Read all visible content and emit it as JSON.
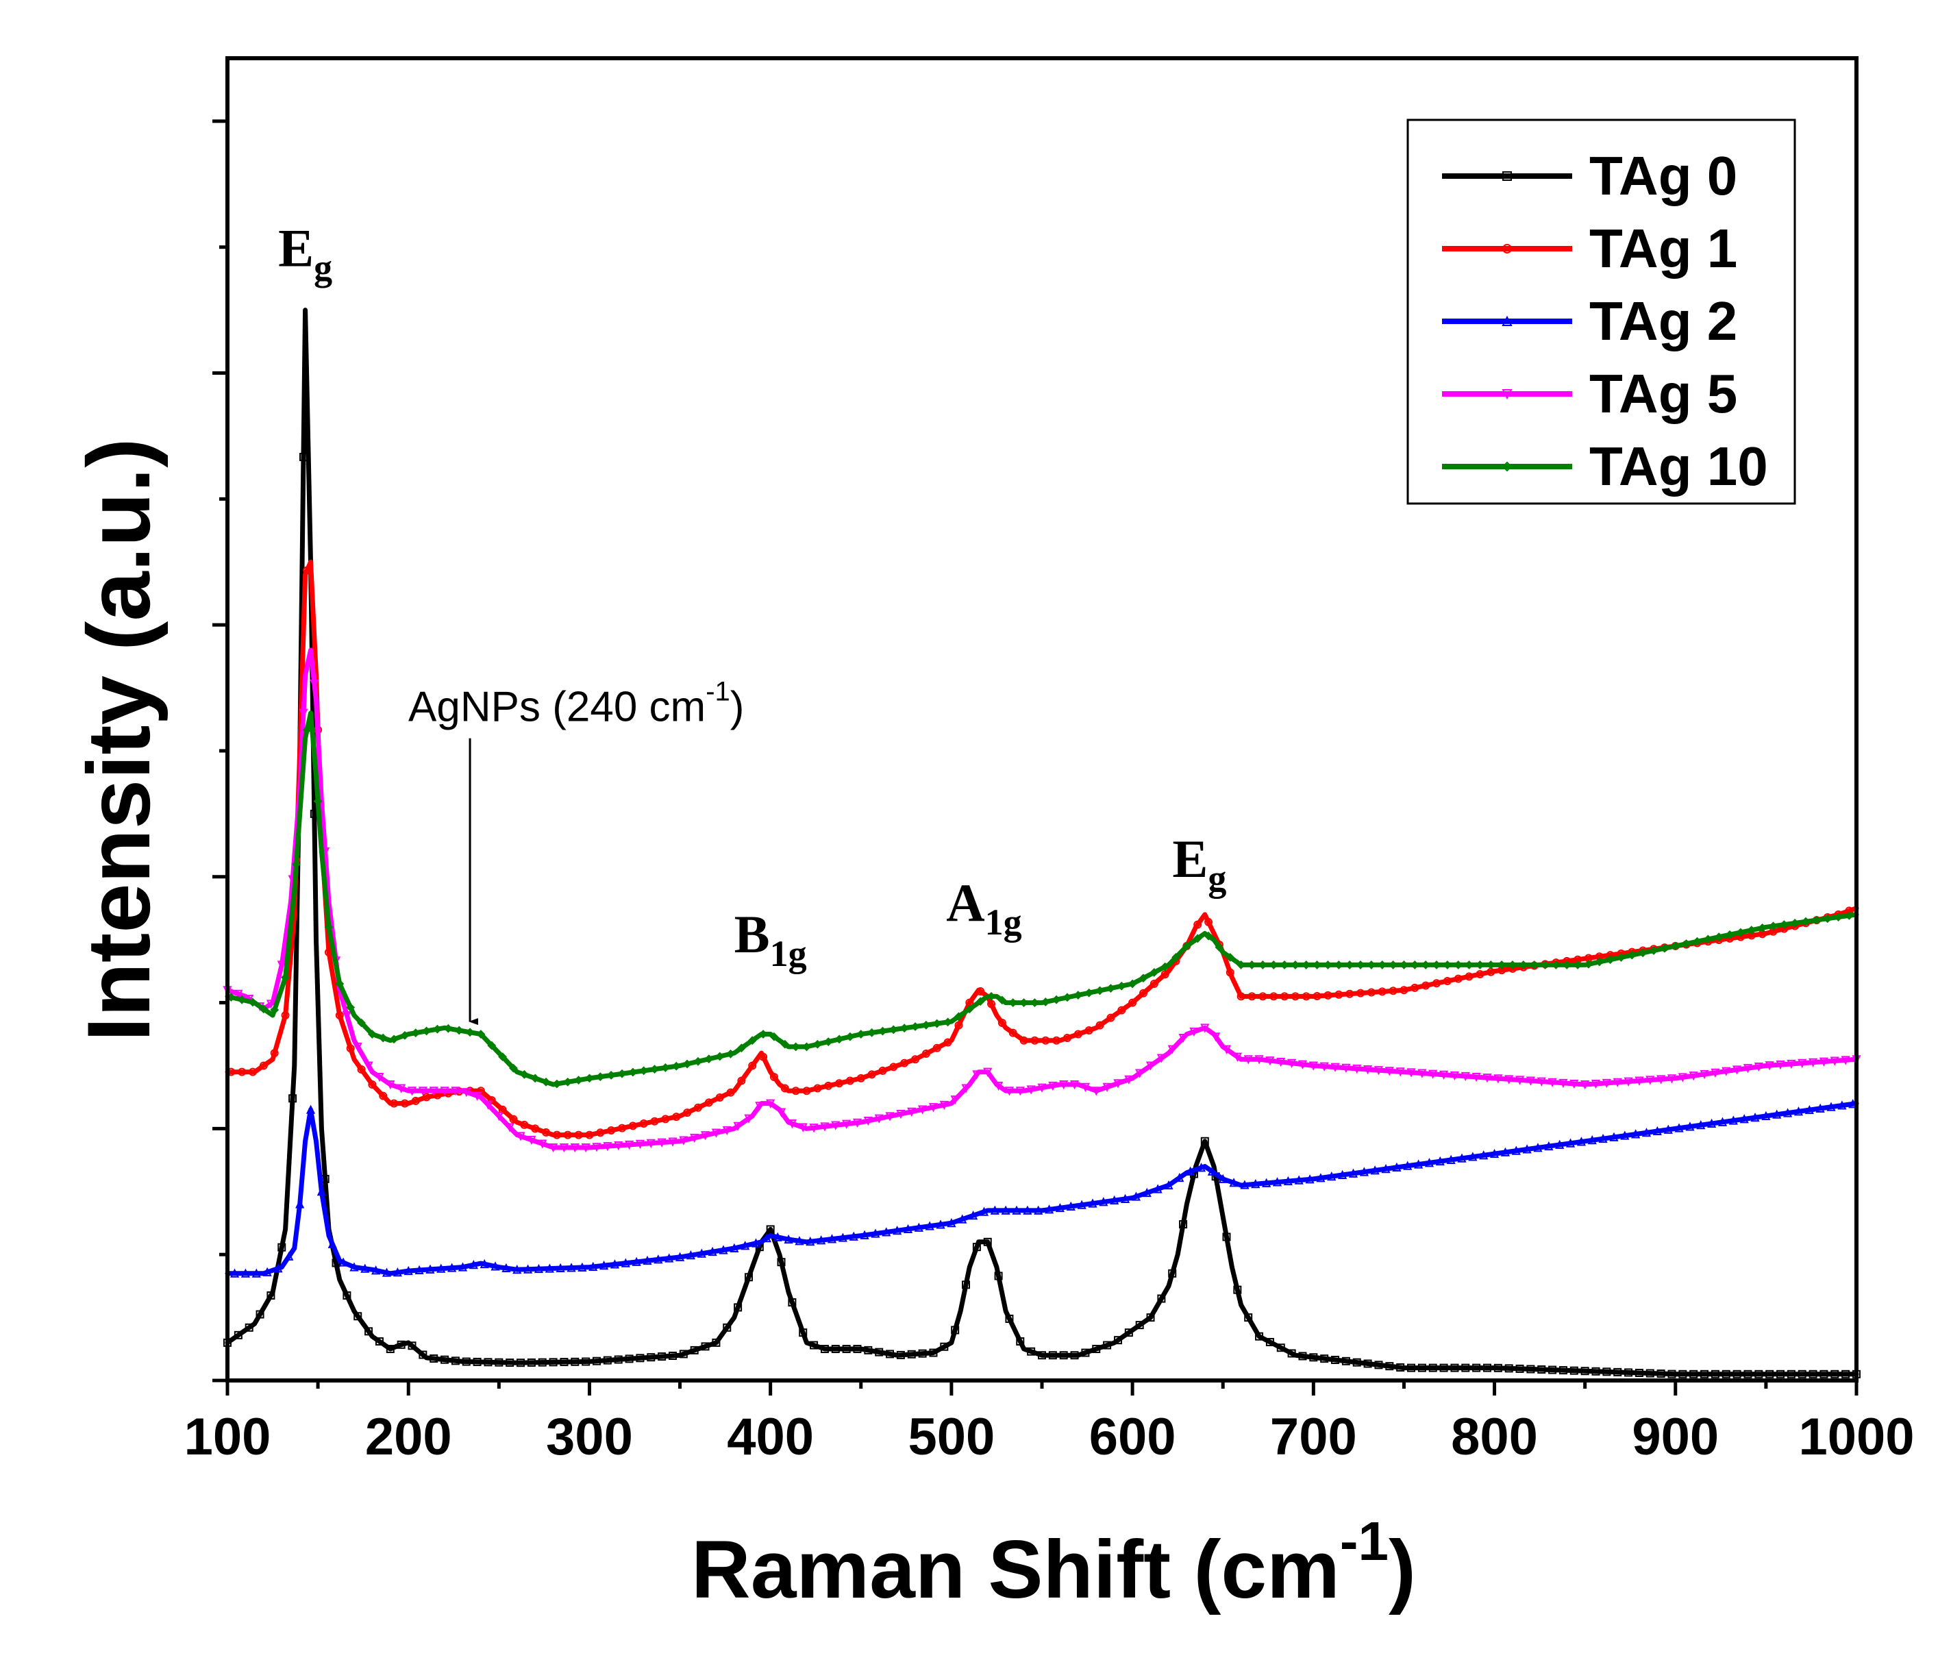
{
  "chart_data": {
    "type": "line",
    "title": "",
    "xlabel": "Raman Shift (cm",
    "xlabel_sup": "-1",
    "xlabel_close": ")",
    "ylabel": "Intensity (a.u.)",
    "xlim": [
      100,
      1000
    ],
    "ylim": [
      0,
      10.5
    ],
    "xticks": [
      100,
      200,
      300,
      400,
      500,
      600,
      700,
      800,
      900,
      1000
    ],
    "y_tick_labels_shown": false,
    "legend_position": "top-right",
    "series": [
      {
        "name": "TAg 0",
        "color": "#000000",
        "marker": "square",
        "x": [
          100,
          115,
          125,
          132,
          137,
          140,
          143,
          146,
          149,
          152,
          156,
          162,
          170,
          180,
          190,
          195,
          200,
          210,
          230,
          260,
          300,
          350,
          370,
          380,
          390,
          395,
          400,
          405,
          410,
          420,
          430,
          450,
          470,
          490,
          500,
          505,
          510,
          515,
          520,
          525,
          530,
          540,
          550,
          570,
          590,
          610,
          620,
          625,
          630,
          635,
          640,
          645,
          650,
          655,
          660,
          670,
          690,
          720,
          750,
          800,
          900,
          1000
        ],
        "y": [
          0.3,
          0.45,
          0.7,
          1.2,
          2.5,
          5.0,
          8.5,
          6.5,
          3.5,
          2.0,
          1.2,
          0.8,
          0.55,
          0.35,
          0.25,
          0.28,
          0.3,
          0.18,
          0.15,
          0.14,
          0.15,
          0.2,
          0.3,
          0.5,
          0.9,
          1.1,
          1.2,
          1.0,
          0.7,
          0.3,
          0.25,
          0.25,
          0.2,
          0.22,
          0.3,
          0.55,
          0.9,
          1.1,
          1.1,
          0.9,
          0.55,
          0.25,
          0.2,
          0.2,
          0.3,
          0.5,
          0.75,
          1.0,
          1.4,
          1.7,
          1.9,
          1.7,
          1.3,
          0.9,
          0.6,
          0.35,
          0.2,
          0.15,
          0.1,
          0.1,
          0.05,
          0.05
        ]
      },
      {
        "name": "TAg 1",
        "color": "#ff0000",
        "marker": "circle",
        "x": [
          100,
          115,
          125,
          132,
          137,
          140,
          143,
          146,
          149,
          152,
          156,
          162,
          170,
          180,
          190,
          200,
          210,
          230,
          240,
          260,
          280,
          300,
          350,
          380,
          390,
          395,
          400,
          405,
          410,
          420,
          450,
          480,
          500,
          505,
          510,
          515,
          520,
          525,
          530,
          540,
          560,
          580,
          600,
          620,
          630,
          635,
          640,
          645,
          650,
          655,
          660,
          670,
          700,
          750,
          800,
          850,
          900,
          950,
          990,
          1000
        ],
        "y": [
          2.45,
          2.45,
          2.55,
          2.9,
          3.7,
          5.0,
          6.4,
          6.5,
          5.6,
          4.3,
          3.4,
          2.9,
          2.55,
          2.35,
          2.2,
          2.2,
          2.25,
          2.3,
          2.3,
          2.05,
          1.95,
          1.95,
          2.1,
          2.3,
          2.5,
          2.6,
          2.45,
          2.35,
          2.3,
          2.3,
          2.4,
          2.55,
          2.7,
          2.85,
          3.0,
          3.1,
          3.05,
          2.9,
          2.8,
          2.7,
          2.7,
          2.8,
          3.0,
          3.25,
          3.45,
          3.6,
          3.7,
          3.55,
          3.4,
          3.2,
          3.05,
          3.05,
          3.05,
          3.1,
          3.25,
          3.35,
          3.45,
          3.55,
          3.7,
          3.75
        ]
      },
      {
        "name": "TAg 2",
        "color": "#0000ff",
        "marker": "triangle-up",
        "x": [
          100,
          120,
          130,
          137,
          140,
          143,
          146,
          149,
          152,
          156,
          162,
          170,
          180,
          190,
          200,
          210,
          230,
          240,
          250,
          260,
          300,
          350,
          380,
          395,
          400,
          410,
          420,
          450,
          500,
          510,
          520,
          530,
          550,
          600,
          620,
          630,
          640,
          650,
          660,
          700,
          750,
          800,
          850,
          900,
          950,
          1000
        ],
        "y": [
          0.85,
          0.85,
          0.9,
          1.05,
          1.4,
          1.9,
          2.15,
          1.9,
          1.5,
          1.15,
          0.95,
          0.9,
          0.88,
          0.85,
          0.87,
          0.88,
          0.9,
          0.93,
          0.9,
          0.88,
          0.9,
          0.98,
          1.05,
          1.1,
          1.15,
          1.12,
          1.1,
          1.15,
          1.25,
          1.3,
          1.35,
          1.35,
          1.35,
          1.45,
          1.55,
          1.65,
          1.7,
          1.6,
          1.55,
          1.6,
          1.7,
          1.8,
          1.9,
          2.0,
          2.1,
          2.2
        ]
      },
      {
        "name": "TAg 5",
        "color": "#ff00ff",
        "marker": "triangle-down",
        "x": [
          100,
          110,
          120,
          125,
          130,
          135,
          140,
          143,
          146,
          149,
          152,
          156,
          162,
          170,
          180,
          190,
          200,
          210,
          230,
          240,
          250,
          260,
          280,
          300,
          350,
          380,
          390,
          395,
          400,
          405,
          410,
          420,
          450,
          500,
          510,
          515,
          520,
          525,
          530,
          540,
          560,
          570,
          580,
          600,
          620,
          630,
          640,
          645,
          650,
          660,
          670,
          700,
          750,
          800,
          850,
          900,
          950,
          1000
        ],
        "y": [
          3.1,
          3.05,
          2.95,
          3.0,
          3.3,
          3.8,
          4.7,
          5.6,
          5.8,
          5.4,
          4.6,
          3.8,
          3.1,
          2.7,
          2.45,
          2.35,
          2.3,
          2.3,
          2.3,
          2.25,
          2.1,
          1.95,
          1.85,
          1.85,
          1.9,
          2.0,
          2.1,
          2.2,
          2.2,
          2.15,
          2.05,
          2.0,
          2.05,
          2.2,
          2.35,
          2.45,
          2.45,
          2.35,
          2.3,
          2.3,
          2.35,
          2.35,
          2.3,
          2.4,
          2.6,
          2.75,
          2.8,
          2.75,
          2.65,
          2.55,
          2.55,
          2.5,
          2.45,
          2.4,
          2.35,
          2.4,
          2.5,
          2.55
        ]
      },
      {
        "name": "TAg 10",
        "color": "#008000",
        "marker": "diamond",
        "x": [
          100,
          115,
          125,
          132,
          137,
          140,
          143,
          146,
          149,
          152,
          156,
          162,
          170,
          180,
          190,
          200,
          220,
          240,
          250,
          260,
          270,
          280,
          300,
          350,
          380,
          395,
          400,
          405,
          410,
          420,
          450,
          500,
          510,
          520,
          525,
          530,
          550,
          600,
          620,
          630,
          635,
          640,
          645,
          650,
          660,
          700,
          750,
          800,
          850,
          900,
          950,
          1000
        ],
        "y": [
          3.05,
          3.0,
          2.9,
          3.2,
          3.9,
          4.5,
          5.1,
          5.3,
          4.8,
          4.2,
          3.6,
          3.15,
          2.9,
          2.75,
          2.7,
          2.75,
          2.8,
          2.75,
          2.6,
          2.45,
          2.4,
          2.35,
          2.4,
          2.5,
          2.6,
          2.75,
          2.75,
          2.7,
          2.65,
          2.65,
          2.75,
          2.85,
          2.95,
          3.05,
          3.05,
          3.0,
          3.0,
          3.15,
          3.3,
          3.45,
          3.5,
          3.55,
          3.5,
          3.4,
          3.3,
          3.3,
          3.3,
          3.3,
          3.3,
          3.45,
          3.6,
          3.7
        ]
      }
    ],
    "annotations": [
      {
        "id": "eg-left",
        "main": "E",
        "sub": "g",
        "x": 143,
        "y": 8.85
      },
      {
        "id": "b1g",
        "main": "B",
        "sub": "1g",
        "x": 400,
        "y": 3.4
      },
      {
        "id": "a1g",
        "main": "A",
        "sub": "1g",
        "x": 518,
        "y": 3.65
      },
      {
        "id": "eg-right",
        "main": "E",
        "sub": "g",
        "x": 637,
        "y": 4.0
      }
    ],
    "arrow_annotation": {
      "text": "AgNPs (240 cm",
      "sup": "-1",
      "close": ")",
      "x": 234,
      "y_from": 5.1,
      "y_to": 2.85
    }
  }
}
